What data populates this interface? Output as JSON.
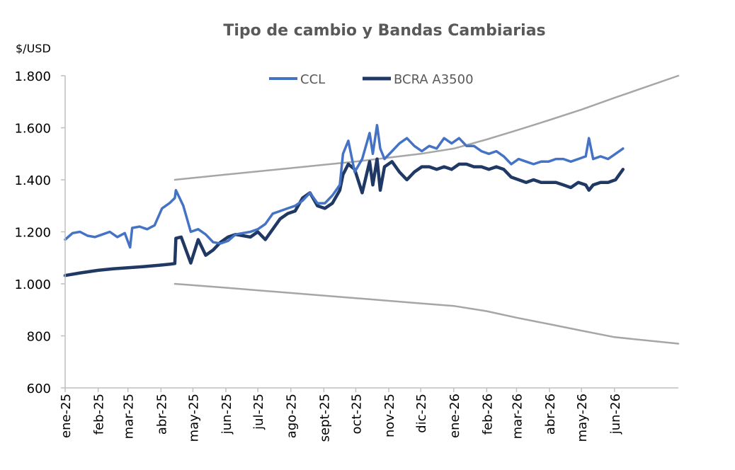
{
  "chart_data": {
    "type": "line",
    "title": "Tipo de cambio y Bandas Cambiarias",
    "ylabel": "$/USD",
    "ylim": [
      600,
      1800
    ],
    "yticks": [
      {
        "value": 600,
        "label": "600"
      },
      {
        "value": 800,
        "label": "800"
      },
      {
        "value": 1000,
        "label": "1.000"
      },
      {
        "value": 1200,
        "label": "1.200"
      },
      {
        "value": 1400,
        "label": "1.400"
      },
      {
        "value": 1600,
        "label": "1.600"
      },
      {
        "value": 1800,
        "label": "1.800"
      }
    ],
    "xlim": [
      "2025-01-01",
      "2026-07-31"
    ],
    "xticks": [
      {
        "date": "2025-01-01",
        "label": "ene-25"
      },
      {
        "date": "2025-02-01",
        "label": "feb-25"
      },
      {
        "date": "2025-03-01",
        "label": "mar-25"
      },
      {
        "date": "2025-04-01",
        "label": "abr-25"
      },
      {
        "date": "2025-05-01",
        "label": "may-25"
      },
      {
        "date": "2025-06-01",
        "label": "jun-25"
      },
      {
        "date": "2025-07-01",
        "label": "jul-25"
      },
      {
        "date": "2025-08-01",
        "label": "ago-25"
      },
      {
        "date": "2025-09-01",
        "label": "sept-25"
      },
      {
        "date": "2025-10-01",
        "label": "oct-25"
      },
      {
        "date": "2025-11-01",
        "label": "nov-25"
      },
      {
        "date": "2025-12-01",
        "label": "dic-25"
      },
      {
        "date": "2026-01-01",
        "label": "ene-26"
      },
      {
        "date": "2026-02-01",
        "label": "feb-26"
      },
      {
        "date": "2026-03-01",
        "label": "mar-26"
      },
      {
        "date": "2026-04-01",
        "label": "abr-26"
      },
      {
        "date": "2026-05-01",
        "label": "may-26"
      },
      {
        "date": "2026-06-01",
        "label": "jun-26"
      }
    ],
    "legend": {
      "position": "top-center",
      "entries": [
        "CCL",
        "BCRA A3500"
      ]
    },
    "grid": false,
    "series": [
      {
        "name": "CCL",
        "color": "#4472c4",
        "x": [
          "2025-01-01",
          "2025-01-08",
          "2025-01-15",
          "2025-01-22",
          "2025-01-29",
          "2025-02-05",
          "2025-02-12",
          "2025-02-19",
          "2025-02-26",
          "2025-03-03",
          "2025-03-05",
          "2025-03-12",
          "2025-03-19",
          "2025-03-26",
          "2025-04-02",
          "2025-04-09",
          "2025-04-14",
          "2025-04-15",
          "2025-04-22",
          "2025-04-29",
          "2025-05-06",
          "2025-05-13",
          "2025-05-20",
          "2025-05-27",
          "2025-06-03",
          "2025-06-10",
          "2025-06-17",
          "2025-06-24",
          "2025-07-01",
          "2025-07-08",
          "2025-07-15",
          "2025-07-22",
          "2025-07-29",
          "2025-08-05",
          "2025-08-12",
          "2025-08-19",
          "2025-08-26",
          "2025-09-02",
          "2025-09-09",
          "2025-09-16",
          "2025-09-19",
          "2025-09-24",
          "2025-09-30",
          "2025-10-07",
          "2025-10-14",
          "2025-10-17",
          "2025-10-21",
          "2025-10-24",
          "2025-10-28",
          "2025-11-04",
          "2025-11-11",
          "2025-11-18",
          "2025-11-25",
          "2025-12-02",
          "2025-12-09",
          "2025-12-16",
          "2025-12-23",
          "2025-12-30",
          "2026-01-06",
          "2026-01-13",
          "2026-01-20",
          "2026-01-27",
          "2026-02-03",
          "2026-02-10",
          "2026-02-17",
          "2026-02-24",
          "2026-03-03",
          "2026-03-10",
          "2026-03-17",
          "2026-03-24",
          "2026-03-31",
          "2026-04-07",
          "2026-04-14",
          "2026-04-21",
          "2026-04-28",
          "2026-05-05",
          "2026-05-08",
          "2026-05-12",
          "2026-05-19",
          "2026-05-26",
          "2026-06-02",
          "2026-06-09"
        ],
        "y": [
          1170,
          1195,
          1200,
          1185,
          1180,
          1190,
          1200,
          1180,
          1195,
          1140,
          1215,
          1220,
          1210,
          1225,
          1290,
          1310,
          1330,
          1360,
          1300,
          1200,
          1210,
          1190,
          1160,
          1155,
          1165,
          1190,
          1195,
          1200,
          1210,
          1230,
          1270,
          1280,
          1290,
          1300,
          1320,
          1350,
          1310,
          1310,
          1340,
          1380,
          1500,
          1550,
          1430,
          1480,
          1580,
          1500,
          1610,
          1520,
          1480,
          1510,
          1540,
          1560,
          1530,
          1510,
          1530,
          1520,
          1560,
          1540,
          1560,
          1530,
          1530,
          1510,
          1500,
          1510,
          1490,
          1460,
          1480,
          1470,
          1460,
          1470,
          1470,
          1480,
          1480,
          1470,
          1480,
          1490,
          1560,
          1480,
          1490,
          1480,
          1500,
          1520
        ]
      },
      {
        "name": "BCRA A3500",
        "color": "#1f3864",
        "x": [
          "2025-01-01",
          "2025-01-15",
          "2025-02-01",
          "2025-02-15",
          "2025-03-01",
          "2025-03-15",
          "2025-04-01",
          "2025-04-10",
          "2025-04-14",
          "2025-04-15",
          "2025-04-20",
          "2025-04-29",
          "2025-05-06",
          "2025-05-13",
          "2025-05-20",
          "2025-05-27",
          "2025-06-03",
          "2025-06-10",
          "2025-06-17",
          "2025-06-24",
          "2025-07-01",
          "2025-07-08",
          "2025-07-15",
          "2025-07-22",
          "2025-07-29",
          "2025-08-05",
          "2025-08-12",
          "2025-08-19",
          "2025-08-26",
          "2025-09-02",
          "2025-09-09",
          "2025-09-16",
          "2025-09-19",
          "2025-09-24",
          "2025-09-30",
          "2025-10-07",
          "2025-10-14",
          "2025-10-17",
          "2025-10-21",
          "2025-10-24",
          "2025-10-28",
          "2025-11-04",
          "2025-11-11",
          "2025-11-18",
          "2025-11-25",
          "2025-12-02",
          "2025-12-09",
          "2025-12-16",
          "2025-12-23",
          "2025-12-30",
          "2026-01-06",
          "2026-01-13",
          "2026-01-20",
          "2026-01-27",
          "2026-02-03",
          "2026-02-10",
          "2026-02-17",
          "2026-02-24",
          "2026-03-03",
          "2026-03-10",
          "2026-03-17",
          "2026-03-24",
          "2026-03-31",
          "2026-04-07",
          "2026-04-14",
          "2026-04-21",
          "2026-04-28",
          "2026-05-05",
          "2026-05-08",
          "2026-05-12",
          "2026-05-19",
          "2026-05-26",
          "2026-06-02",
          "2026-06-09"
        ],
        "y": [
          1032,
          1042,
          1052,
          1058,
          1062,
          1066,
          1072,
          1076,
          1078,
          1175,
          1180,
          1080,
          1170,
          1110,
          1130,
          1160,
          1180,
          1190,
          1185,
          1180,
          1200,
          1170,
          1210,
          1250,
          1270,
          1280,
          1330,
          1350,
          1300,
          1290,
          1310,
          1360,
          1420,
          1460,
          1440,
          1350,
          1470,
          1380,
          1480,
          1360,
          1450,
          1470,
          1430,
          1400,
          1430,
          1450,
          1450,
          1440,
          1450,
          1440,
          1460,
          1460,
          1450,
          1450,
          1440,
          1450,
          1440,
          1410,
          1400,
          1390,
          1400,
          1390,
          1390,
          1390,
          1380,
          1370,
          1390,
          1380,
          1360,
          1380,
          1390,
          1390,
          1400,
          1440
        ]
      },
      {
        "name": "",
        "color": "#a6a6a6",
        "x": [
          "2025-04-14",
          "2025-06-01",
          "2025-08-01",
          "2025-10-01",
          "2025-12-01",
          "2026-01-01",
          "2026-02-01",
          "2026-03-01",
          "2026-04-01",
          "2026-05-01",
          "2026-06-01",
          "2026-07-31"
        ],
        "y": [
          1400,
          1420,
          1445,
          1470,
          1500,
          1520,
          1555,
          1590,
          1630,
          1670,
          1715,
          1800
        ]
      },
      {
        "name": "",
        "color": "#a6a6a6",
        "x": [
          "2025-04-14",
          "2025-06-01",
          "2025-08-01",
          "2025-10-01",
          "2025-12-01",
          "2026-01-01",
          "2026-02-01",
          "2026-03-01",
          "2026-04-01",
          "2026-05-01",
          "2026-06-01",
          "2026-07-31"
        ],
        "y": [
          1000,
          985,
          965,
          945,
          925,
          915,
          895,
          870,
          845,
          820,
          795,
          770
        ]
      }
    ]
  }
}
